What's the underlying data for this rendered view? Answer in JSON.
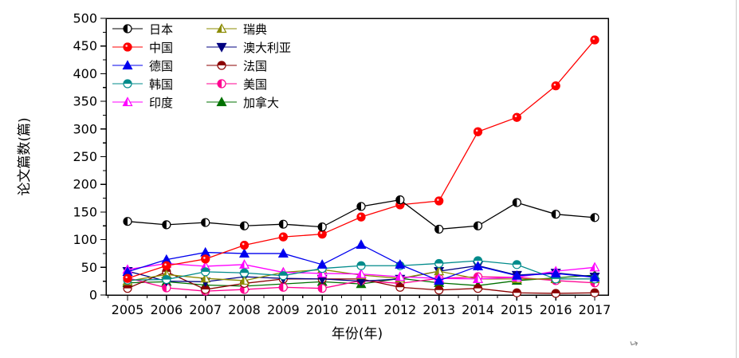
{
  "artifact": {
    "glyph": "↵"
  },
  "chart_data": {
    "type": "line",
    "title": "",
    "xlabel": "年份(年)",
    "ylabel": "论文篇数(篇)",
    "x": [
      2005,
      2006,
      2007,
      2008,
      2009,
      2010,
      2011,
      2012,
      2013,
      2014,
      2015,
      2016,
      2017
    ],
    "ylim": [
      0,
      500
    ],
    "ytick_step": 50,
    "ytick_minor_step": 25,
    "grid": false,
    "legend_position": "top-left-inside",
    "legend_columns": [
      [
        0,
        1,
        2,
        3,
        4
      ],
      [
        5,
        6,
        7,
        8,
        9
      ]
    ],
    "series": [
      {
        "name": "日本",
        "color": "#000000",
        "marker": {
          "shape": "circle",
          "fill": "half-left"
        },
        "values": [
          133,
          127,
          131,
          125,
          128,
          123,
          160,
          172,
          119,
          125,
          167,
          146,
          140
        ]
      },
      {
        "name": "中国",
        "color": "#ff0000",
        "marker": {
          "shape": "circle",
          "fill": "full"
        },
        "values": [
          30,
          53,
          65,
          90,
          105,
          110,
          141,
          163,
          170,
          295,
          321,
          378,
          461
        ]
      },
      {
        "name": "德国",
        "color": "#0000ee",
        "marker": {
          "shape": "triangle-up",
          "fill": "full"
        },
        "values": [
          42,
          64,
          77,
          75,
          75,
          55,
          91,
          55,
          26,
          52,
          35,
          39,
          32
        ]
      },
      {
        "name": "韩国",
        "color": "#008b8b",
        "marker": {
          "shape": "circle",
          "fill": "half-top"
        },
        "values": [
          27,
          28,
          42,
          40,
          35,
          48,
          53,
          53,
          57,
          62,
          55,
          29,
          29
        ]
      },
      {
        "name": "印度",
        "color": "#ff00ff",
        "marker": {
          "shape": "triangle-up",
          "fill": "half-left"
        },
        "values": [
          46,
          57,
          52,
          55,
          41,
          39,
          38,
          33,
          30,
          29,
          32,
          43,
          50
        ]
      },
      {
        "name": "瑞典",
        "color": "#8b8b00",
        "marker": {
          "shape": "triangle-up",
          "fill": "half-left"
        },
        "values": [
          25,
          37,
          30,
          26,
          41,
          46,
          36,
          30,
          43,
          29,
          29,
          29,
          29
        ]
      },
      {
        "name": "澳大利亚",
        "color": "#000080",
        "marker": {
          "shape": "triangle-down",
          "fill": "full"
        },
        "values": [
          43,
          25,
          24,
          33,
          30,
          29,
          25,
          29,
          43,
          53,
          36,
          40,
          33
        ]
      },
      {
        "name": "法国",
        "color": "#8b0000",
        "marker": {
          "shape": "circle",
          "fill": "half-top"
        },
        "values": [
          12,
          42,
          10,
          21,
          29,
          29,
          29,
          14,
          9,
          12,
          4,
          3,
          4
        ]
      },
      {
        "name": "美国",
        "color": "#ff0090",
        "marker": {
          "shape": "circle",
          "fill": "half-left"
        },
        "values": [
          31,
          13,
          7,
          10,
          14,
          12,
          26,
          21,
          30,
          33,
          32,
          26,
          22
        ]
      },
      {
        "name": "加拿大",
        "color": "#007000",
        "marker": {
          "shape": "triangle-up",
          "fill": "full"
        },
        "values": [
          22,
          24,
          18,
          16,
          20,
          24,
          20,
          30,
          22,
          17,
          26,
          31,
          36
        ]
      }
    ]
  }
}
